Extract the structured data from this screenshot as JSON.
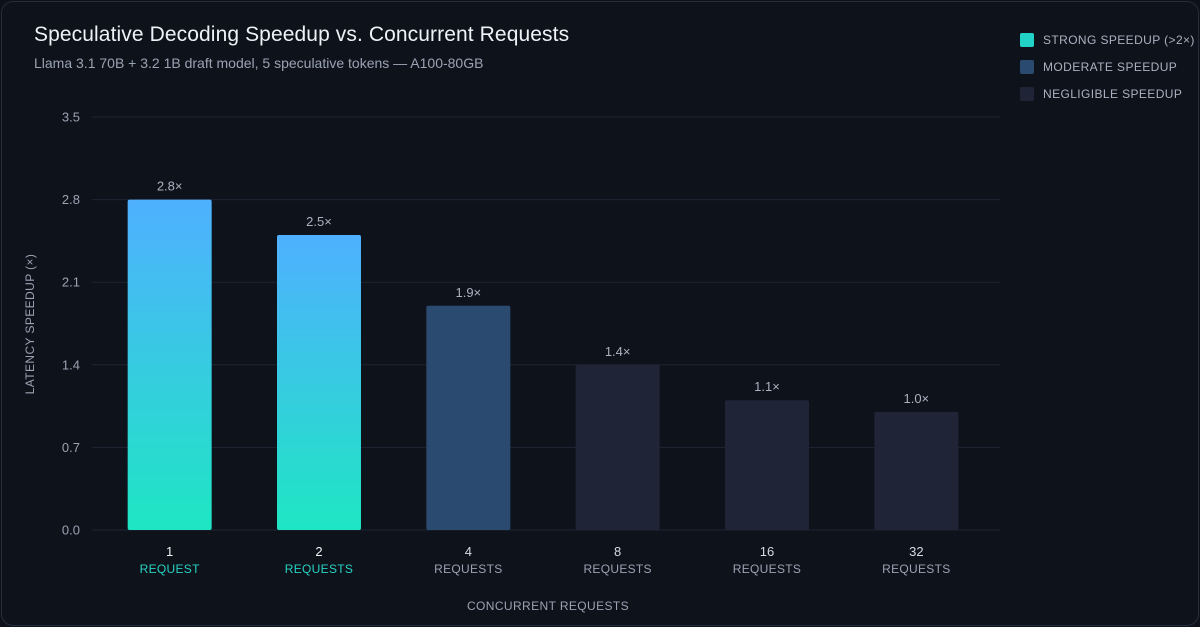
{
  "chart_data": {
    "type": "bar",
    "title": "Speculative Decoding Speedup vs. Concurrent Requests",
    "subtitle": "Llama 3.1 70B + 3.2 1B draft model, 5 speculative tokens — A100-80GB",
    "xlabel": "CONCURRENT REQUESTS",
    "ylabel": "LATENCY SPEEDUP (×)",
    "ylim": [
      0,
      3.5
    ],
    "yticks": [
      0.0,
      0.7,
      1.4,
      2.1,
      2.8,
      3.5
    ],
    "ytick_labels": [
      "0.0",
      "0.7",
      "1.4",
      "2.1",
      "2.8",
      "3.5"
    ],
    "categories": [
      {
        "num": "1",
        "unit": "REQUEST"
      },
      {
        "num": "2",
        "unit": "REQUESTS"
      },
      {
        "num": "4",
        "unit": "REQUESTS"
      },
      {
        "num": "8",
        "unit": "REQUESTS"
      },
      {
        "num": "16",
        "unit": "REQUESTS"
      },
      {
        "num": "32",
        "unit": "REQUESTS"
      }
    ],
    "values": [
      2.8,
      2.5,
      1.9,
      1.4,
      1.1,
      1.0
    ],
    "data_labels": [
      "2.8×",
      "2.5×",
      "1.9×",
      "1.4×",
      "1.1×",
      "1.0×"
    ],
    "bar_class": [
      "strong",
      "strong",
      "moderate",
      "negligible",
      "negligible",
      "negligible"
    ],
    "grid": true,
    "legend_position": "top-right",
    "legend": [
      {
        "key": "strong",
        "label": "STRONG SPEEDUP (>2×)",
        "color": "#22d3c8"
      },
      {
        "key": "moderate",
        "label": "MODERATE SPEEDUP",
        "color": "#2b4a70"
      },
      {
        "key": "negligible",
        "label": "NEGLIGIBLE SPEEDUP",
        "color": "#1f2536"
      }
    ],
    "colors": {
      "strong_top": "#4fb0ff",
      "strong_bottom": "#1ee6c3",
      "moderate": "#2b4a70",
      "negligible": "#1f2536",
      "grid": "#1f2533"
    }
  }
}
